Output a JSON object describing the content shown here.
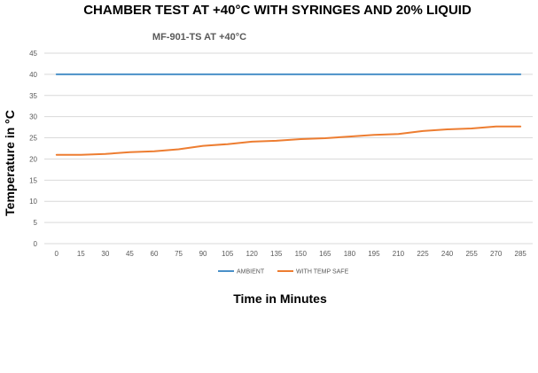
{
  "chart_data": {
    "type": "line",
    "title": "CHAMBER TEST AT +40°C WITH SYRINGES AND 20% LIQUID",
    "subtitle": "MF-901-TS AT +40°C",
    "xlabel": "Time in Minutes",
    "ylabel": "Temperature in °C",
    "ylim": [
      0,
      45
    ],
    "yticks": [
      "0",
      "5",
      "10",
      "15",
      "20",
      "25",
      "30",
      "35",
      "40",
      "45"
    ],
    "categories": [
      "0",
      "15",
      "30",
      "45",
      "60",
      "75",
      "90",
      "105",
      "120",
      "135",
      "150",
      "165",
      "180",
      "195",
      "210",
      "225",
      "240",
      "255",
      "270",
      "285"
    ],
    "series": [
      {
        "name": "AMBIENT",
        "color": "#4a90c8",
        "values": [
          40,
          40,
          40,
          40,
          40,
          40,
          40,
          40,
          40,
          40,
          40,
          40,
          40,
          40,
          40,
          40,
          40,
          40,
          40,
          40
        ]
      },
      {
        "name": "WITH TEMP SAFE",
        "color": "#ed7d31",
        "values": [
          21,
          21,
          21.2,
          21.6,
          21.8,
          22.3,
          23.1,
          23.5,
          24.1,
          24.3,
          24.7,
          24.9,
          25.3,
          25.7,
          25.9,
          26.6,
          27,
          27.2,
          27.7,
          27.7
        ]
      }
    ],
    "grid": true,
    "legend_position": "bottom"
  }
}
